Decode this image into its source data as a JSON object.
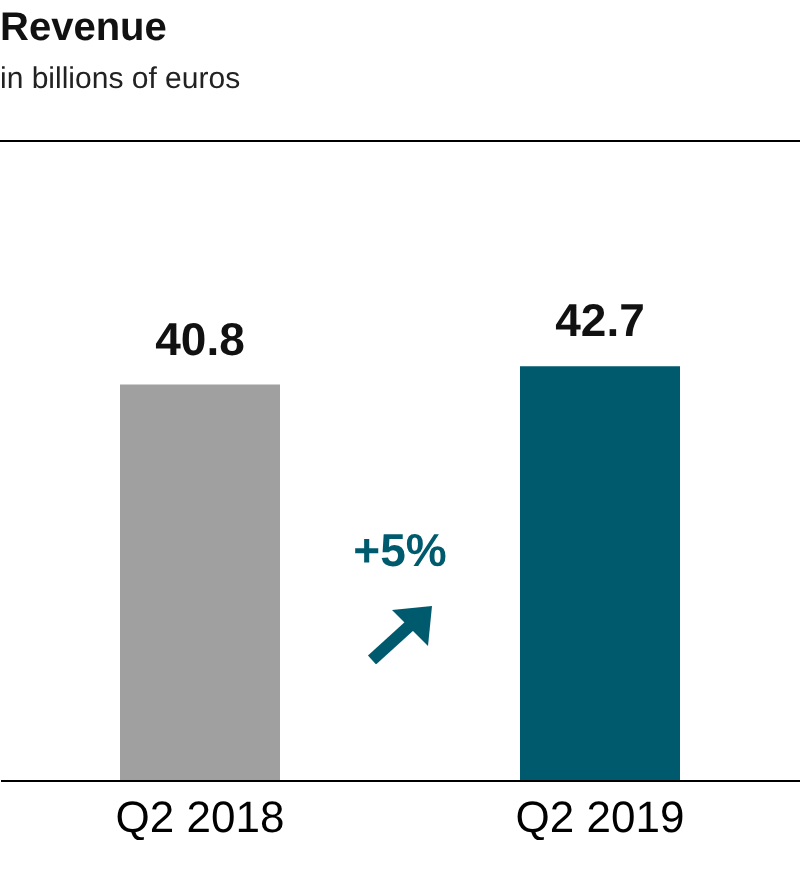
{
  "chart_data": {
    "type": "bar",
    "title": "Revenue",
    "subtitle": "in billions of euros",
    "categories": [
      "Q2 2018",
      "Q2 2019"
    ],
    "values": [
      40.8,
      42.7
    ],
    "colors": [
      "#a0a0a0",
      "#005a6e"
    ],
    "data_labels": true,
    "annotations": [
      "+5%"
    ]
  }
}
